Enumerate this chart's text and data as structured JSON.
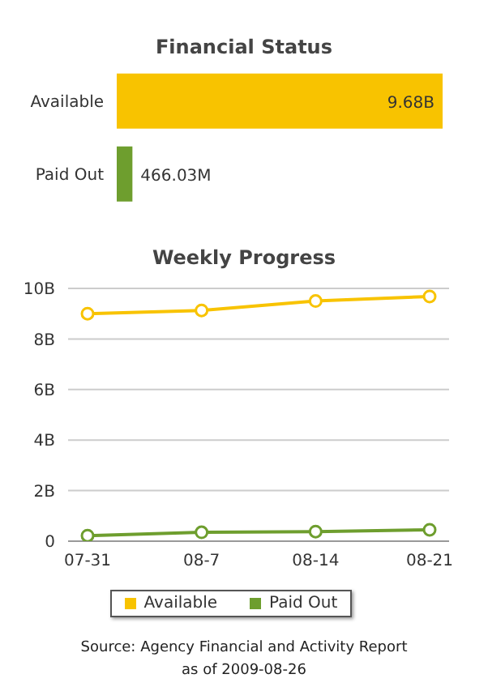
{
  "chart_data": [
    {
      "type": "bar",
      "title": "Financial Status",
      "orientation": "horizontal",
      "categories": [
        "Available",
        "Paid Out"
      ],
      "values": [
        9680000000,
        466030000
      ],
      "colors": [
        "#f8c300",
        "#6e9e2e"
      ],
      "value_labels": [
        "9.68B",
        "466.03M"
      ]
    },
    {
      "type": "line",
      "title": "Weekly Progress",
      "categories": [
        "07-31",
        "08-7",
        "08-14",
        "08-21"
      ],
      "series": [
        {
          "name": "Available",
          "color": "#f8c300",
          "values": [
            9.0,
            9.13,
            9.5,
            9.68
          ]
        },
        {
          "name": "Paid Out",
          "color": "#6e9e2e",
          "values": [
            0.22,
            0.35,
            0.38,
            0.45
          ]
        }
      ],
      "ylim": [
        0,
        10
      ],
      "yticks": [
        {
          "value": 0,
          "label": "0"
        },
        {
          "value": 2,
          "label": "2B"
        },
        {
          "value": 4,
          "label": "4B"
        },
        {
          "value": 6,
          "label": "6B"
        },
        {
          "value": 8,
          "label": "8B"
        },
        {
          "value": 10,
          "label": "10B"
        }
      ],
      "grid": "y",
      "legend": "bottom",
      "marker": "circle",
      "line_style": "solid",
      "annotations": [
        "Source: Agency Financial and Activity Report as of 2009-08-26"
      ]
    }
  ]
}
